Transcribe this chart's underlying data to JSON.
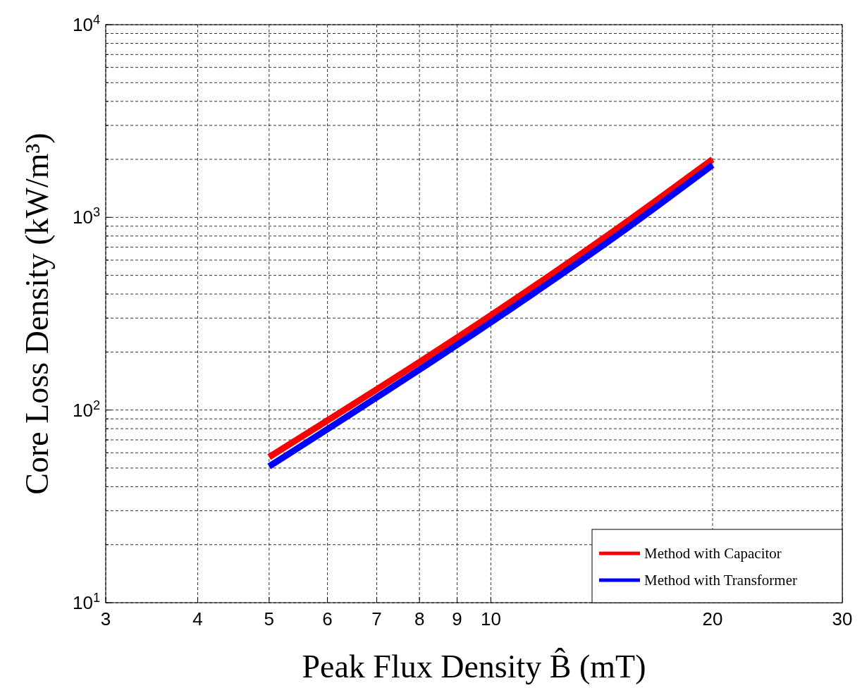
{
  "chart_data": {
    "type": "line",
    "xlabel": "Peak Flux Density B̂ (mT)",
    "ylabel": "Core Loss Density (kW/m³)",
    "log": "xy",
    "xlim": [
      3,
      30
    ],
    "xticks": [
      3,
      4,
      5,
      6,
      7,
      8,
      9,
      10,
      20,
      30
    ],
    "ylim": [
      10,
      10000
    ],
    "yticks": [
      {
        "value": 10,
        "label": "10$^{1}$"
      },
      {
        "value": 20,
        "label": null
      },
      {
        "value": 30,
        "label": null
      },
      {
        "value": 40,
        "label": null
      },
      {
        "value": 50,
        "label": null
      },
      {
        "value": 60,
        "label": null
      },
      {
        "value": 70,
        "label": null
      },
      {
        "value": 80,
        "label": null
      },
      {
        "value": 90,
        "label": null
      },
      {
        "value": 100,
        "label": "10$^{2}$"
      },
      {
        "value": 200,
        "label": null
      },
      {
        "value": 300,
        "label": null
      },
      {
        "value": 400,
        "label": null
      },
      {
        "value": 500,
        "label": null
      },
      {
        "value": 600,
        "label": null
      },
      {
        "value": 700,
        "label": null
      },
      {
        "value": 800,
        "label": null
      },
      {
        "value": 900,
        "label": null
      },
      {
        "value": 1000,
        "label": "10$^{3}$"
      },
      {
        "value": 2000,
        "label": null
      },
      {
        "value": 3000,
        "label": null
      },
      {
        "value": 4000,
        "label": null
      },
      {
        "value": 5000,
        "label": null
      },
      {
        "value": 6000,
        "label": null
      },
      {
        "value": 7000,
        "label": null
      },
      {
        "value": 8000,
        "label": null
      },
      {
        "value": 9000,
        "label": null
      },
      {
        "value": 10000,
        "label": "10$^{4}$"
      }
    ],
    "x": [
      5,
      10,
      15,
      20
    ],
    "grid": true,
    "legend": "bottom right",
    "line_style": "solid",
    "marker": "none",
    "series": [
      {
        "name": "Method with Capacitor",
        "color": "#ff0000",
        "values": [
          57,
          310,
          900,
          2000
        ]
      },
      {
        "name": "Method with Transformer",
        "color": "#0000ff",
        "values": [
          51,
          285,
          830,
          1870
        ]
      }
    ]
  }
}
